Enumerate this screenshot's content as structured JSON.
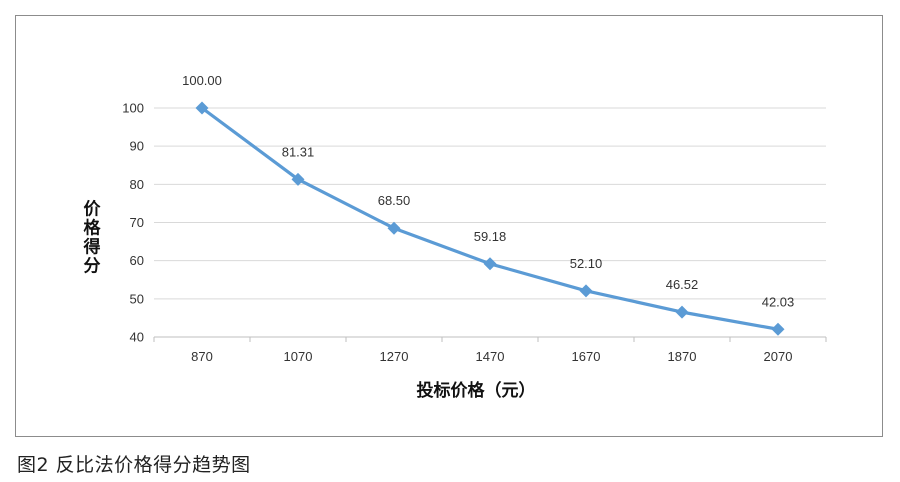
{
  "caption": "图2  反比法价格得分趋势图",
  "chart_data": {
    "type": "line",
    "title": "",
    "xlabel": "投标价格（元）",
    "ylabel": "价格得分",
    "categories": [
      "870",
      "1070",
      "1270",
      "1470",
      "1670",
      "1870",
      "2070"
    ],
    "x": [
      870,
      1070,
      1270,
      1470,
      1670,
      1870,
      2070
    ],
    "series": [
      {
        "values": [
          100.0,
          81.31,
          68.5,
          59.18,
          52.1,
          46.52,
          42.03
        ],
        "data_labels": [
          "100.00",
          "81.31",
          "68.50",
          "59.18",
          "52.10",
          "46.52",
          "42.03"
        ],
        "color": "#5b9bd5",
        "marker": "diamond"
      }
    ],
    "yticks": [
      "40",
      "50",
      "60",
      "70",
      "80",
      "90",
      "100"
    ],
    "ylim": [
      40,
      100
    ],
    "grid": true,
    "legend": "none"
  }
}
